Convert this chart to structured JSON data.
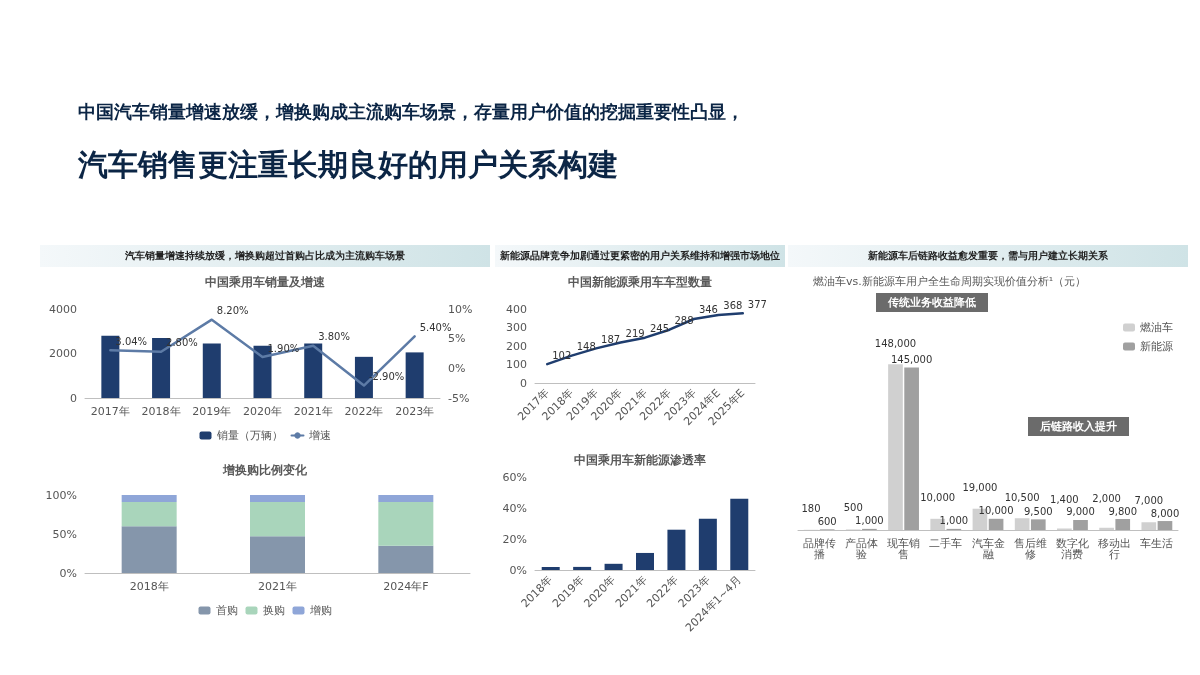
{
  "chart_data": [
    {
      "type": "bar",
      "title": "中国乘用车销量及增速",
      "subtitle": "汽车销量增速持续放缓，增换购超过首购占比成为主流购车场景",
      "annotations": [
        "中国汽车销量增速放缓，增换购成主流购车场景，存量用户价值的挖掘重要性凸显，",
        "汽车销售更注重长期良好的用户关系构建"
      ],
      "categories": [
        "2017年",
        "2018年",
        "2019年",
        "2020年",
        "2021年",
        "2022年",
        "2023年"
      ],
      "series": [
        {
          "name": "销量（万辆）",
          "color": "#1f3d6e",
          "values": [
            2800,
            2700,
            2450,
            2350,
            2450,
            1850,
            2050
          ]
        },
        {
          "name": "增速",
          "type": "line",
          "axis": "y2",
          "color": "#5d7ba6",
          "values": [
            3.04,
            2.8,
            8.2,
            1.9,
            3.8,
            -2.9,
            5.4
          ],
          "value_labels": [
            "3.04%",
            "2.80%",
            "8.20%",
            "1.90%",
            "3.80%",
            "-2.90%",
            "5.40%"
          ]
        }
      ],
      "ylim": [
        0,
        4000
      ],
      "yticks": [
        0,
        2000,
        4000
      ],
      "y2lim": [
        -5,
        10
      ],
      "y2ticks": [
        {
          "value": -5,
          "label": "-5%"
        },
        {
          "value": 0,
          "label": "0%"
        },
        {
          "value": 5,
          "label": "5%"
        },
        {
          "value": 10,
          "label": "10%"
        }
      ],
      "legend": "bottom"
    },
    {
      "type": "bar",
      "title": "增换购比例变化",
      "stacked": true,
      "categories": [
        "2018年",
        "2021年",
        "2024年F"
      ],
      "series": [
        {
          "name": "首购",
          "color": "#8596ab",
          "values": [
            60,
            47,
            35
          ]
        },
        {
          "name": "换购",
          "color": "#a9d5bb",
          "values": [
            31,
            44,
            56
          ]
        },
        {
          "name": "增购",
          "color": "#8fa6d8",
          "values": [
            9,
            9,
            9
          ]
        }
      ],
      "ylim": [
        0,
        100
      ],
      "yticks": [
        {
          "value": 0,
          "label": "0%"
        },
        {
          "value": 50,
          "label": "50%"
        },
        {
          "value": 100,
          "label": "100%"
        }
      ],
      "legend": "bottom"
    },
    {
      "type": "line",
      "title": "中国新能源乘用车车型数量",
      "subtitle": "新能源品牌竞争加剧通过更紧密的用户关系维持和增强市场地位",
      "categories": [
        "2017年",
        "2018年",
        "2019年",
        "2020年",
        "2021年",
        "2022年",
        "2023年",
        "2024年E",
        "2025年E"
      ],
      "values": [
        102,
        148,
        187,
        219,
        245,
        288,
        346,
        368,
        377
      ],
      "color": "#1f3d6e",
      "ylim": [
        0,
        400
      ],
      "yticks": [
        0,
        100,
        200,
        300,
        400
      ],
      "data_labels": true
    },
    {
      "type": "bar",
      "title": "中国乘用车新能源渗透率",
      "categories": [
        "2018年",
        "2019年",
        "2020年",
        "2021年",
        "2022年",
        "2023年",
        "2024年1~4月"
      ],
      "values": [
        2,
        2,
        4,
        11,
        26,
        33,
        46
      ],
      "color": "#1f3d6e",
      "ylim": [
        0,
        60
      ],
      "yticks": [
        {
          "value": 0,
          "label": "0%"
        },
        {
          "value": 20,
          "label": "20%"
        },
        {
          "value": 40,
          "label": "40%"
        },
        {
          "value": 60,
          "label": "60%"
        }
      ]
    },
    {
      "type": "bar",
      "title": "燃油车vs.新能源车用户全生命周期实现价值分析¹（元）",
      "subtitle": "新能源车后链路收益愈发重要，需与用户建立长期关系",
      "annotations": [
        "传统业务收益降低",
        "后链路收入提升"
      ],
      "categories": [
        "品牌传播",
        "产品体验",
        "现车销售",
        "二手车",
        "汽车金融",
        "售后维修",
        "数字化消费",
        "移动出行",
        "车生活"
      ],
      "tick_labels": "x",
      "series": [
        {
          "name": "燃油车",
          "color": "#d0d0d0",
          "values": [
            180,
            500,
            148000,
            10000,
            19000,
            10500,
            1400,
            2000,
            7000
          ],
          "value_labels": [
            "180",
            "500",
            "148,000",
            "10,000",
            "19,000",
            "10,500",
            "1,400",
            "2,000",
            "7,000"
          ]
        },
        {
          "name": "新能源",
          "color": "#a0a0a0",
          "values": [
            600,
            1000,
            145000,
            1000,
            10000,
            9500,
            9000,
            9800,
            8000
          ],
          "value_labels": [
            "600",
            "1,000",
            "145,000",
            "1,000",
            "10,000",
            "9,500",
            "9,000",
            "9,800",
            "8,000"
          ]
        }
      ],
      "legend": "top right"
    }
  ]
}
